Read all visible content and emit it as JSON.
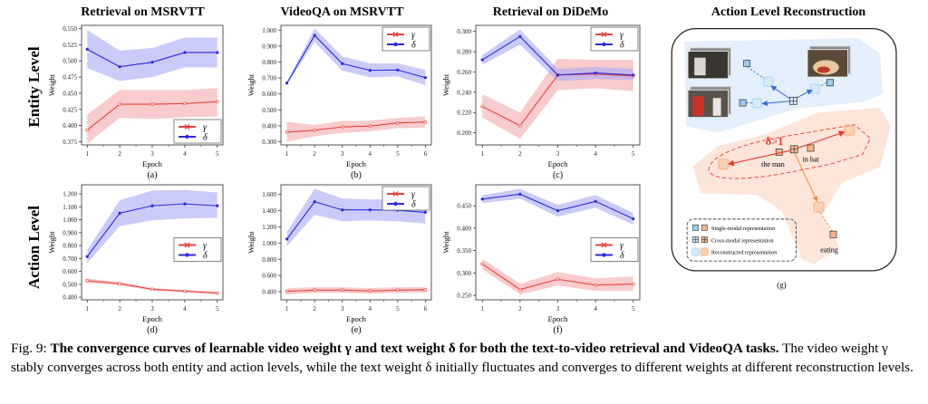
{
  "row_labels": [
    "Entity Level",
    "Action Level"
  ],
  "colors": {
    "gamma": "#e8423c",
    "gamma_band": "#f2a3a3",
    "delta": "#2a2ae0",
    "delta_band": "#a9a9f5",
    "frame": "#555555"
  },
  "chart_data": [
    {
      "id": "a",
      "type": "line",
      "title": "Retrieval on MSRVTT",
      "panel_label": "(a)",
      "xlabel": "Epoch",
      "ylabel": "Weight",
      "x": [
        1,
        2,
        3,
        4,
        5
      ],
      "xticks": [
        "1",
        "2",
        "3",
        "4",
        "5"
      ],
      "ylim": [
        0.37,
        0.555
      ],
      "yticks": [
        "0.375",
        "0.400",
        "0.425",
        "0.450",
        "0.475",
        "0.500",
        "0.525",
        "0.550"
      ],
      "legend": "bottom-right",
      "series": [
        {
          "name": "γ",
          "key": "gamma",
          "values": [
            0.393,
            0.433,
            0.433,
            0.434,
            0.437
          ],
          "lower": [
            0.372,
            0.412,
            0.41,
            0.413,
            0.414
          ],
          "upper": [
            0.417,
            0.455,
            0.455,
            0.455,
            0.458
          ]
        },
        {
          "name": "δ",
          "key": "delta",
          "values": [
            0.518,
            0.491,
            0.498,
            0.513,
            0.513
          ],
          "lower": [
            0.489,
            0.469,
            0.475,
            0.49,
            0.49
          ],
          "upper": [
            0.548,
            0.516,
            0.52,
            0.536,
            0.536
          ]
        }
      ]
    },
    {
      "id": "b",
      "type": "line",
      "title": "VideoQA on MSRVTT",
      "panel_label": "(b)",
      "xlabel": "Epoch",
      "ylabel": "Weight",
      "x": [
        1,
        2,
        3,
        4,
        5,
        6
      ],
      "xticks": [
        "1",
        "2",
        "3",
        "4",
        "5",
        "6"
      ],
      "ylim": [
        0.28,
        1.03
      ],
      "yticks": [
        "0.300",
        "0.400",
        "0.500",
        "0.600",
        "0.700",
        "0.800",
        "0.900",
        "1.000"
      ],
      "legend": "top-right",
      "series": [
        {
          "name": "γ",
          "key": "gamma",
          "values": [
            0.36,
            0.372,
            0.393,
            0.398,
            0.418,
            0.423
          ],
          "lower": [
            0.3,
            0.335,
            0.355,
            0.365,
            0.385,
            0.388
          ],
          "upper": [
            0.425,
            0.405,
            0.43,
            0.432,
            0.45,
            0.458
          ]
        },
        {
          "name": "δ",
          "key": "delta",
          "values": [
            0.668,
            0.967,
            0.79,
            0.748,
            0.75,
            0.702
          ],
          "lower": [
            0.66,
            0.925,
            0.745,
            0.705,
            0.71,
            0.655
          ],
          "upper": [
            0.675,
            1.01,
            0.835,
            0.792,
            0.792,
            0.75
          ]
        }
      ]
    },
    {
      "id": "c",
      "type": "line",
      "title": "Retrieval on DiDeMo",
      "panel_label": "(c)",
      "xlabel": "Epoch",
      "ylabel": "Weight",
      "x": [
        1,
        2,
        3,
        4,
        5
      ],
      "xticks": [
        "1",
        "2",
        "3",
        "4",
        "5"
      ],
      "ylim": [
        0.188,
        0.306
      ],
      "yticks": [
        "0.200",
        "0.220",
        "0.240",
        "0.260",
        "0.280",
        "0.300"
      ],
      "legend": "top-right",
      "series": [
        {
          "name": "γ",
          "key": "gamma",
          "values": [
            0.226,
            0.207,
            0.257,
            0.258,
            0.256
          ],
          "lower": [
            0.215,
            0.194,
            0.242,
            0.244,
            0.241
          ],
          "upper": [
            0.238,
            0.22,
            0.273,
            0.272,
            0.272
          ]
        },
        {
          "name": "δ",
          "key": "delta",
          "values": [
            0.272,
            0.295,
            0.257,
            0.259,
            0.257
          ],
          "lower": [
            0.267,
            0.287,
            0.251,
            0.253,
            0.252
          ],
          "upper": [
            0.277,
            0.302,
            0.263,
            0.265,
            0.263
          ]
        }
      ]
    },
    {
      "id": "d",
      "type": "line",
      "title": "",
      "panel_label": "(d)",
      "xlabel": "Epoch",
      "ylabel": "Weight",
      "x": [
        1,
        2,
        3,
        4,
        5
      ],
      "xticks": [
        "1",
        "2",
        "3",
        "4",
        "5"
      ],
      "ylim": [
        0.38,
        1.27
      ],
      "yticks": [
        "0.400",
        "0.500",
        "0.600",
        "0.700",
        "0.800",
        "0.900",
        "1.000",
        "1.100",
        "1.200"
      ],
      "legend": "center-right",
      "series": [
        {
          "name": "γ",
          "key": "gamma",
          "values": [
            0.528,
            0.505,
            0.462,
            0.447,
            0.432
          ],
          "lower": [
            0.51,
            0.492,
            0.452,
            0.438,
            0.424
          ],
          "upper": [
            0.545,
            0.518,
            0.472,
            0.456,
            0.441
          ]
        },
        {
          "name": "δ",
          "key": "delta",
          "values": [
            0.715,
            1.05,
            1.108,
            1.122,
            1.108
          ],
          "lower": [
            0.665,
            0.95,
            0.995,
            1.01,
            1.015
          ],
          "upper": [
            0.765,
            1.15,
            1.225,
            1.23,
            1.21
          ]
        }
      ]
    },
    {
      "id": "e",
      "type": "line",
      "title": "",
      "panel_label": "(e)",
      "xlabel": "Epoch",
      "ylabel": "Weight",
      "x": [
        1,
        2,
        3,
        4,
        5,
        6
      ],
      "xticks": [
        "1",
        "2",
        "3",
        "4",
        "5",
        "6"
      ],
      "ylim": [
        0.3,
        1.72
      ],
      "yticks": [
        "0.400",
        "0.600",
        "0.800",
        "1.000",
        "1.200",
        "1.400",
        "1.600"
      ],
      "legend": "top-right",
      "series": [
        {
          "name": "γ",
          "key": "gamma",
          "values": [
            0.405,
            0.42,
            0.42,
            0.41,
            0.42,
            0.425
          ],
          "lower": [
            0.365,
            0.385,
            0.385,
            0.375,
            0.385,
            0.39
          ],
          "upper": [
            0.445,
            0.455,
            0.455,
            0.445,
            0.455,
            0.46
          ]
        },
        {
          "name": "δ",
          "key": "delta",
          "values": [
            1.05,
            1.51,
            1.41,
            1.41,
            1.405,
            1.38
          ],
          "lower": [
            0.96,
            1.35,
            1.27,
            1.28,
            1.27,
            1.24
          ],
          "upper": [
            1.14,
            1.67,
            1.55,
            1.54,
            1.54,
            1.52
          ]
        }
      ]
    },
    {
      "id": "f",
      "type": "line",
      "title": "",
      "panel_label": "(f)",
      "xlabel": "Epoch",
      "ylabel": "Weight",
      "x": [
        1,
        2,
        3,
        4,
        5
      ],
      "xticks": [
        "1",
        "2",
        "3",
        "4",
        "5"
      ],
      "ylim": [
        0.24,
        0.497
      ],
      "yticks": [
        "0.250",
        "0.300",
        "0.350",
        "0.400",
        "0.450"
      ],
      "legend": "center-right",
      "series": [
        {
          "name": "γ",
          "key": "gamma",
          "values": [
            0.32,
            0.263,
            0.286,
            0.273,
            0.275
          ],
          "lower": [
            0.308,
            0.252,
            0.272,
            0.26,
            0.26
          ],
          "upper": [
            0.332,
            0.276,
            0.302,
            0.288,
            0.292
          ]
        },
        {
          "name": "δ",
          "key": "delta",
          "values": [
            0.465,
            0.476,
            0.439,
            0.46,
            0.421
          ],
          "lower": [
            0.456,
            0.466,
            0.426,
            0.446,
            0.408
          ],
          "upper": [
            0.474,
            0.488,
            0.452,
            0.474,
            0.434
          ]
        }
      ]
    }
  ],
  "diagram": {
    "title": "Action Level Reconstruction",
    "panel_label": "(g)",
    "annotation": "δ>1",
    "words": [
      "the man",
      "in hat",
      "eating"
    ],
    "legend": [
      {
        "label": "Single-modal representation",
        "icon": "single-modal-icon"
      },
      {
        "label": "Cross-modal representation",
        "icon": "cross-modal-icon"
      },
      {
        "label": "Reconstructed representation",
        "icon": "reconstructed-icon"
      }
    ]
  },
  "caption": {
    "fig_label": "Fig. 9:",
    "bold": "The convergence curves of learnable video weight γ and text weight δ for both the text-to-video retrieval and VideoQA tasks.",
    "rest": "The video weight γ stably converges across both entity and action levels, while the text weight δ initially fluctuates and converges to different weights at different reconstruction levels."
  }
}
